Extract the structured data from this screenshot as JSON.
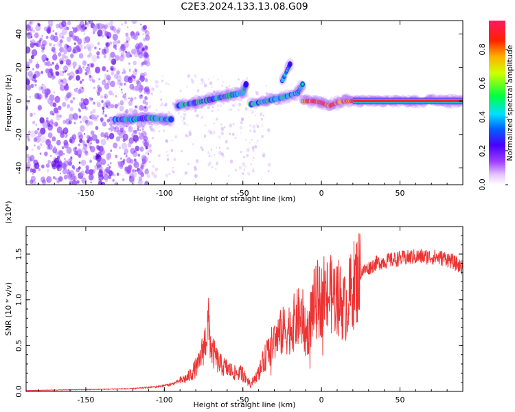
{
  "figure": {
    "title": "C2E3.2024.133.13.08.G09"
  },
  "chart_data": [
    {
      "type": "heatmap",
      "xlabel": "Height of straight line (km)",
      "ylabel": "Frequency (Hz)",
      "xlim": [
        -188,
        90
      ],
      "ylim": [
        -50,
        48
      ],
      "xticks": [
        -150,
        -100,
        -50,
        0,
        50
      ],
      "yticks": [
        -40,
        -20,
        0,
        20,
        40
      ],
      "colorbar": {
        "label": "Normalized spectral amplitude",
        "range": [
          0.0,
          0.97
        ],
        "ticks": [
          "0.0",
          "0.2",
          "0.4",
          "0.6",
          "0.8"
        ]
      },
      "ridge": {
        "segments": [
          {
            "x": [
              -132,
              -120,
              -110,
              -100,
              -95
            ],
            "y": [
              -11,
              -11,
              -10,
              -11,
              -11
            ]
          },
          {
            "x": [
              -92,
              -80,
              -70,
              -60,
              -50,
              -48
            ],
            "y": [
              -3,
              -1,
              1,
              3,
              5,
              10
            ]
          },
          {
            "x": [
              -45,
              -35,
              -25,
              -15,
              -12
            ],
            "y": [
              -2,
              0,
              2,
              5,
              10
            ]
          },
          {
            "x": [
              -25,
              -20
            ],
            "y": [
              12,
              22
            ]
          },
          {
            "x": [
              -12,
              -5,
              0,
              5,
              10,
              15,
              20,
              40,
              60,
              80,
              90
            ],
            "y": [
              0,
              0,
              -1,
              -3,
              -1,
              0,
              0,
              0,
              0,
              0,
              0
            ]
          }
        ]
      }
    },
    {
      "type": "line",
      "xlabel": "Height of straight line (km)",
      "ylabel": "SNR (10 * v/v)",
      "scale_note": "(x10⁴)",
      "xlim": [
        -188,
        90
      ],
      "ylim": [
        0,
        1.8
      ],
      "xticks": [
        -150,
        -100,
        -50,
        0,
        50
      ],
      "yticks": [
        0.0,
        0.5,
        1.0,
        1.5
      ],
      "ytick_labels": [
        "0.0",
        "0.5",
        "1.0",
        "1.5"
      ],
      "color": "#ee3333",
      "envelope": {
        "x": [
          -188,
          -150,
          -120,
          -105,
          -95,
          -85,
          -78,
          -74,
          -72,
          -70,
          -65,
          -60,
          -55,
          -50,
          -45,
          -40,
          -35,
          -30,
          -25,
          -20,
          -15,
          -12,
          -10,
          -8,
          -5,
          0,
          5,
          10,
          15,
          20,
          25,
          30,
          35,
          40,
          50,
          60,
          70,
          80,
          85,
          90
        ],
        "y": [
          0.01,
          0.02,
          0.03,
          0.05,
          0.08,
          0.15,
          0.3,
          0.55,
          0.75,
          0.45,
          0.3,
          0.25,
          0.2,
          0.2,
          0.08,
          0.2,
          0.4,
          0.55,
          0.65,
          0.7,
          0.8,
          0.8,
          0.6,
          0.7,
          0.95,
          1.0,
          1.05,
          1.05,
          0.9,
          1.15,
          1.3,
          1.35,
          1.4,
          1.42,
          1.45,
          1.47,
          1.47,
          1.45,
          1.4,
          1.35
        ]
      }
    }
  ]
}
